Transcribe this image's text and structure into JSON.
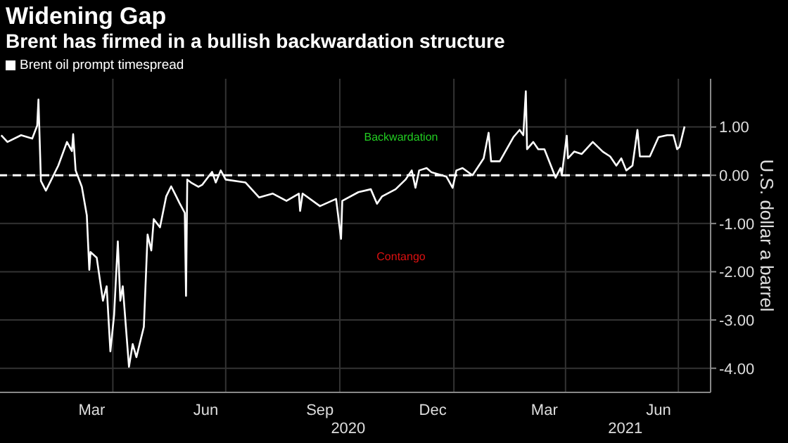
{
  "chart_data": {
    "type": "line",
    "title": "Widening Gap",
    "subtitle": "Brent has firmed in a bullish backwardation structure",
    "ylabel": "U.S. dollar a barrel",
    "x": [
      "2020-01-02",
      "2020-01-07",
      "2020-01-18",
      "2020-01-27",
      "2020-01-31",
      "2020-02-01",
      "2020-02-03",
      "2020-02-07",
      "2020-02-17",
      "2020-02-24",
      "2020-02-28",
      "2020-02-29",
      "2020-03-02",
      "2020-03-07",
      "2020-03-11",
      "2020-03-13",
      "2020-03-14",
      "2020-03-19",
      "2020-03-24",
      "2020-03-27",
      "2020-03-30",
      "2020-04-02",
      "2020-04-05",
      "2020-04-07",
      "2020-04-09",
      "2020-04-14",
      "2020-04-17",
      "2020-04-20",
      "2020-04-26",
      "2020-04-29",
      "2020-05-02",
      "2020-05-04",
      "2020-05-09",
      "2020-05-14",
      "2020-05-18",
      "2020-05-21",
      "2020-05-25",
      "2020-05-29",
      "2020-05-30",
      "2020-05-31",
      "2020-06-03",
      "2020-06-09",
      "2020-06-12",
      "2020-06-20",
      "2020-06-23",
      "2020-06-27",
      "2020-07-01",
      "2020-07-17",
      "2020-07-28",
      "2020-08-08",
      "2020-08-19",
      "2020-08-29",
      "2020-08-30",
      "2020-09-01",
      "2020-09-15",
      "2020-09-28",
      "2020-10-02",
      "2020-10-03",
      "2020-10-16",
      "2020-10-26",
      "2020-10-31",
      "2020-11-04",
      "2020-11-15",
      "2020-11-23",
      "2020-11-28",
      "2020-12-01",
      "2020-12-04",
      "2020-12-10",
      "2020-12-14",
      "2020-12-26",
      "2020-12-31",
      "2021-01-03",
      "2021-01-08",
      "2021-01-16",
      "2021-01-25",
      "2021-01-29",
      "2021-01-31",
      "2021-02-07",
      "2021-02-18",
      "2021-02-23",
      "2021-02-26",
      "2021-02-28",
      "2021-03-01",
      "2021-03-06",
      "2021-03-10",
      "2021-03-15",
      "2021-03-21",
      "2021-03-24",
      "2021-03-28",
      "2021-03-29",
      "2021-04-02",
      "2021-04-03",
      "2021-04-08",
      "2021-04-14",
      "2021-04-23",
      "2021-05-01",
      "2021-05-07",
      "2021-05-12",
      "2021-05-16",
      "2021-05-20",
      "2021-05-25",
      "2021-05-29",
      "2021-05-31",
      "2021-06-08",
      "2021-06-15",
      "2021-06-22",
      "2021-06-27",
      "2021-06-30",
      "2021-07-02",
      "2021-07-06"
    ],
    "series": [
      {
        "name": "Brent oil prompt timespread",
        "color": "#ffffff",
        "values": [
          0.83,
          0.69,
          0.83,
          0.76,
          1.03,
          1.57,
          -0.12,
          -0.32,
          0.2,
          0.69,
          0.5,
          0.85,
          0.1,
          -0.24,
          -0.83,
          -1.96,
          -1.59,
          -1.71,
          -2.6,
          -2.3,
          -3.65,
          -2.9,
          -1.37,
          -2.6,
          -2.3,
          -3.97,
          -3.5,
          -3.77,
          -3.14,
          -1.23,
          -1.56,
          -0.91,
          -1.08,
          -0.44,
          -0.23,
          -0.38,
          -0.59,
          -0.78,
          -2.5,
          -0.09,
          -0.15,
          -0.24,
          -0.2,
          0.07,
          -0.15,
          0.1,
          -0.09,
          -0.15,
          -0.46,
          -0.38,
          -0.53,
          -0.38,
          -0.74,
          -0.38,
          -0.64,
          -0.49,
          -1.32,
          -0.53,
          -0.35,
          -0.29,
          -0.59,
          -0.44,
          -0.29,
          -0.09,
          0.1,
          -0.26,
          0.1,
          0.15,
          0.06,
          -0.03,
          -0.26,
          0.1,
          0.15,
          0,
          0.35,
          0.88,
          0.29,
          0.29,
          0.79,
          0.94,
          0.83,
          1.74,
          0.54,
          0.69,
          0.54,
          0.54,
          0.15,
          -0.05,
          0.15,
          0,
          0.82,
          0.35,
          0.49,
          0.44,
          0.69,
          0.49,
          0.39,
          0.2,
          0.35,
          0.1,
          0.2,
          0.94,
          0.39,
          0.39,
          0.79,
          0.83,
          0.83,
          0.54,
          0.59,
          1.01
        ]
      }
    ],
    "xlim": [
      "2020-01-01",
      "2021-07-27"
    ],
    "xticks": [
      {
        "value": "2020-03-15",
        "label": "Mar"
      },
      {
        "value": "2020-04-01",
        "label": null
      },
      {
        "value": "2020-06-15",
        "label": "Jun"
      },
      {
        "value": "2020-07-01",
        "label": null
      },
      {
        "value": "2020-09-15",
        "label": "Sep"
      },
      {
        "value": "2020-10-01",
        "label": null
      },
      {
        "value": "2020-12-15",
        "label": "Dec"
      },
      {
        "value": "2021-01-01",
        "label": null
      },
      {
        "value": "2021-03-15",
        "label": "Mar"
      },
      {
        "value": "2021-04-01",
        "label": null
      },
      {
        "value": "2021-06-15",
        "label": "Jun"
      },
      {
        "value": "2021-07-01",
        "label": null
      }
    ],
    "ylim": [
      -4.5,
      2
    ],
    "yticks": [
      {
        "value": 1,
        "label": "1.00"
      },
      {
        "value": 0,
        "label": "0.00"
      },
      {
        "value": -1,
        "label": "-1.00"
      },
      {
        "value": -2,
        "label": "-2.00"
      },
      {
        "value": -3,
        "label": "-3.00"
      },
      {
        "value": -4,
        "label": "-4.00"
      }
    ],
    "ref_lines": [
      {
        "axis": "y",
        "value": 0,
        "color": "#ffffff",
        "line_style": "dashed"
      }
    ],
    "annotations": [
      "2020",
      "2021",
      "Backwardation",
      "Contango"
    ],
    "grid": true,
    "legend": "top left",
    "marker": "none",
    "line_style": "solid"
  }
}
